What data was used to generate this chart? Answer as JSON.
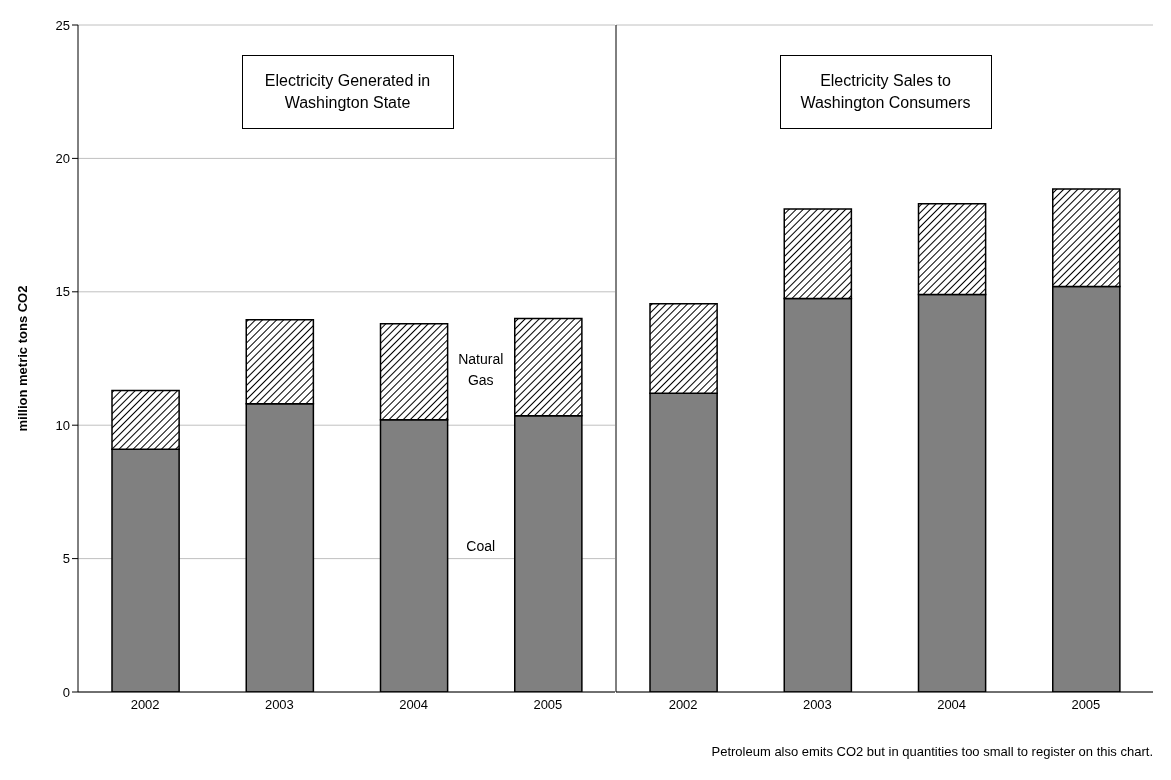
{
  "chart_data": [
    {
      "type": "bar",
      "stacked": true,
      "ylabel": "million metric tons CO2",
      "categories": [
        "2002",
        "2003",
        "2004",
        "2005"
      ],
      "series": [
        {
          "name": "Coal",
          "color": "#808080",
          "values": [
            9.1,
            10.8,
            10.2,
            10.35
          ]
        },
        {
          "name": "Natural Gas",
          "color": "#000000",
          "values": [
            2.2,
            3.15,
            3.6,
            3.65
          ]
        }
      ],
      "ylim": [
        0,
        25
      ],
      "yticks": [
        0,
        5,
        10,
        15,
        20,
        25
      ],
      "grid": "y",
      "legend": false,
      "annotations": [
        "Electricity Generated in Washington State"
      ]
    },
    {
      "type": "bar",
      "stacked": true,
      "categories": [
        "2002",
        "2003",
        "2004",
        "2005"
      ],
      "series": [
        {
          "color": "#808080",
          "values": [
            11.2,
            14.75,
            14.9,
            15.2
          ]
        },
        {
          "color": "#000000",
          "values": [
            3.35,
            3.35,
            3.4,
            3.65
          ]
        }
      ],
      "ylim": [
        0,
        25
      ],
      "yticks": [
        0,
        5,
        10,
        15,
        20,
        25
      ],
      "tick_labels": "x",
      "grid": "y",
      "legend": false,
      "annotations": [
        "Electricity Sales to Washington Consumers",
        "Petroleum also emits CO2 but in quantities too small to register on this chart."
      ]
    }
  ]
}
